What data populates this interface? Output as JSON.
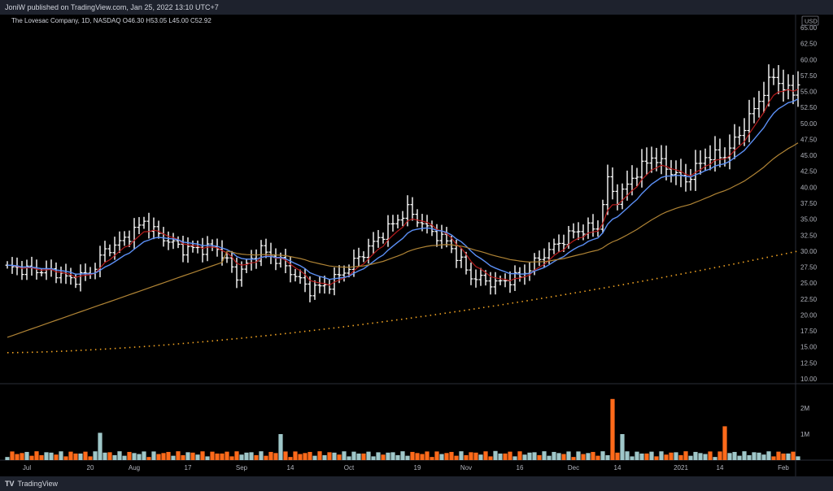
{
  "header": {
    "published": "JoniW published on TradingView.com, Jan 25, 2022 13:10 UTC+7"
  },
  "legend": {
    "symbol": "The Lovesac Company, 1D, NASDAQ",
    "o_label": "O",
    "o": "46.30",
    "h_label": "H",
    "h": "53.05",
    "l_label": "L",
    "l": "45.00",
    "c_label": "C",
    "c": "52.92"
  },
  "footer": {
    "brand": "TradingView",
    "logo": "TV"
  },
  "colors": {
    "background": "#000000",
    "bar": "#ffffff",
    "ema_red": "#b71c1c",
    "ema_blue": "#5b8ff5",
    "sma_orange": "#b08435",
    "sma_dotted": "#f5a623",
    "vol_up": "#9fc7c9",
    "vol_down": "#ff6a1a",
    "axis_text": "#b2b5be"
  },
  "chart_data": {
    "type": "ohlc_bar",
    "currency": "USD",
    "y_ticks": [
      "65.00",
      "62.50",
      "60.00",
      "57.50",
      "55.00",
      "52.50",
      "50.00",
      "47.50",
      "45.00",
      "42.50",
      "40.00",
      "37.50",
      "35.00",
      "32.50",
      "30.00",
      "27.50",
      "25.00",
      "22.50",
      "20.00",
      "17.50",
      "15.00",
      "12.50",
      "10.00"
    ],
    "ylim": [
      10,
      65
    ],
    "x_ticks": [
      {
        "label": "Jul",
        "i": 4
      },
      {
        "label": "20",
        "i": 17
      },
      {
        "label": "Aug",
        "i": 26
      },
      {
        "label": "17",
        "i": 37
      },
      {
        "label": "Sep",
        "i": 48
      },
      {
        "label": "14",
        "i": 58
      },
      {
        "label": "Oct",
        "i": 70
      },
      {
        "label": "19",
        "i": 84
      },
      {
        "label": "Nov",
        "i": 94
      },
      {
        "label": "16",
        "i": 105
      },
      {
        "label": "Dec",
        "i": 116
      },
      {
        "label": "14",
        "i": 125
      },
      {
        "label": "2021",
        "i": 138
      },
      {
        "label": "14",
        "i": 146
      },
      {
        "label": "Feb",
        "i": 159
      }
    ],
    "num_bars": 163,
    "anchor_closes": [
      [
        0,
        27.4
      ],
      [
        6,
        27.0
      ],
      [
        10,
        26.7
      ],
      [
        13,
        25.5
      ],
      [
        17,
        26.6
      ],
      [
        20,
        30.0
      ],
      [
        24,
        31.8
      ],
      [
        28,
        34.6
      ],
      [
        31,
        32.5
      ],
      [
        36,
        30.3
      ],
      [
        43,
        30.5
      ],
      [
        47,
        26.2
      ],
      [
        52,
        30.2
      ],
      [
        56,
        28.3
      ],
      [
        62,
        23.9
      ],
      [
        66,
        24.9
      ],
      [
        70,
        27.5
      ],
      [
        76,
        32.0
      ],
      [
        82,
        36.5
      ],
      [
        86,
        33.5
      ],
      [
        90,
        31.5
      ],
      [
        95,
        26.0
      ],
      [
        100,
        24.9
      ],
      [
        105,
        26.0
      ],
      [
        110,
        29.5
      ],
      [
        116,
        33.0
      ],
      [
        121,
        33.8
      ],
      [
        123,
        41.0
      ],
      [
        125,
        38.0
      ],
      [
        128,
        41.5
      ],
      [
        132,
        44.8
      ],
      [
        136,
        42.5
      ],
      [
        139,
        41.0
      ],
      [
        143,
        44.8
      ],
      [
        147,
        45.0
      ],
      [
        151,
        49.5
      ],
      [
        155,
        55.0
      ],
      [
        157,
        57.5
      ],
      [
        159,
        55.5
      ],
      [
        161,
        54.8
      ],
      [
        162,
        56.5
      ]
    ],
    "volume_y_ticks": [
      "2M",
      "1M"
    ],
    "volume_spikes": [
      [
        19,
        1.05
      ],
      [
        56,
        1.0
      ],
      [
        124,
        2.35
      ],
      [
        126,
        1.0
      ],
      [
        147,
        1.3
      ],
      [
        100,
        0.35
      ],
      [
        76,
        0.3
      ]
    ]
  }
}
